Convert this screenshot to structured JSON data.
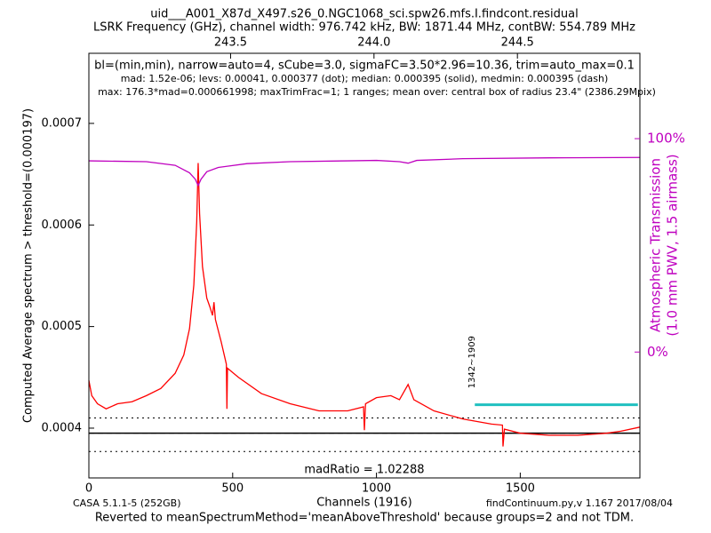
{
  "chart_data": {
    "type": "line",
    "title": "uid___A001_X87d_X497.s26_0.NGC1068_sci.spw26.mfs.I.findcont.residual",
    "subtitle": "LSRK Frequency (GHz), channel width: 976.742 kHz, BW: 1871.44 MHz, contBW: 554.789 MHz",
    "annotations": [
      "bl=(min,min), narrow=auto=4, sCube=3.0, sigmaFC=3.50*2.96=10.36, trim=auto_max=0.1",
      "mad: 1.52e-06; levs: 0.00041, 0.000377 (dot); median: 0.000395 (solid), medmin: 0.000395 (dash)",
      "max: 176.3*mad=0.000661998; maxTrimFrac=1; 1 ranges; mean over: central box of radius 23.4\" (2386.29Mpix)"
    ],
    "ratio_label": "madRatio = 1.02288",
    "footer_left": "CASA 5.1.1-5   (252GB)",
    "footer_right": "findContinuum.py,v 1.167 2017/08/04",
    "footer_note": "Reverted to meanSpectrumMethod='meanAboveThreshold' because groups=2 and not TDM.",
    "xlabel": "Channels (1916)",
    "ylabel": "Computed Average spectrum > threshold=(0.000197)",
    "y2label": [
      "Atmospheric Transmission",
      "(1.0 mm PWV, 1.5 airmass)"
    ],
    "xlim": [
      0,
      1916
    ],
    "xticks": [
      0,
      500,
      1000,
      1500
    ],
    "x2lim": [
      243.006,
      244.927
    ],
    "x2ticks": [
      243.5,
      {
        "value": 244.0,
        "label": "244.0"
      },
      244.5
    ],
    "ylim": [
      0.000351,
      0.000769
    ],
    "yticks": [
      0.0004,
      0.0005,
      0.0006,
      0.0007
    ],
    "y2lim": [
      -59,
      140
    ],
    "y2ticks": [
      {
        "value": 0,
        "label": "0%"
      },
      {
        "value": 100,
        "label": "100%"
      }
    ],
    "y2color": "#bf00bf",
    "series": [
      {
        "color": "#ff0000",
        "x": [
          0,
          10,
          30,
          60,
          100,
          150,
          200,
          250,
          300,
          330,
          350,
          365,
          375,
          380,
          385,
          395,
          410,
          420,
          430,
          435,
          440,
          460,
          478,
          480,
          482,
          520,
          600,
          700,
          800,
          900,
          955,
          958,
          962,
          1000,
          1050,
          1080,
          1110,
          1130,
          1200,
          1300,
          1400,
          1438,
          1440,
          1445,
          1500,
          1600,
          1700,
          1800,
          1850,
          1916
        ],
        "values": [
          0.000447,
          0.000432,
          0.000424,
          0.000419,
          0.000424,
          0.000426,
          0.000432,
          0.000439,
          0.000454,
          0.000472,
          0.000498,
          0.000541,
          0.000603,
          0.000661,
          0.000611,
          0.000559,
          0.000528,
          0.00052,
          0.000511,
          0.000524,
          0.000507,
          0.000485,
          0.000463,
          0.000419,
          0.000459,
          0.00045,
          0.000434,
          0.000424,
          0.000417,
          0.000417,
          0.000421,
          0.000398,
          0.000424,
          0.00043,
          0.000432,
          0.000428,
          0.000443,
          0.000428,
          0.000417,
          0.000409,
          0.000404,
          0.000403,
          0.000382,
          0.000399,
          0.000395,
          0.000393,
          0.000393,
          0.000395,
          0.000397,
          0.000401
        ]
      },
      {
        "color": "#bf00bf",
        "axis": "y2",
        "x": [
          0,
          200,
          300,
          350,
          370,
          380,
          390,
          410,
          450,
          550,
          700,
          900,
          1000,
          1080,
          1110,
          1140,
          1300,
          1600,
          1916
        ],
        "values": [
          89.6,
          89.2,
          87.5,
          84,
          81,
          78,
          81,
          84.5,
          86.5,
          88.3,
          89.2,
          89.6,
          89.8,
          89.2,
          88.5,
          89.8,
          90.6,
          91,
          91.2
        ]
      }
    ],
    "levels": [
      {
        "value": 0.00041,
        "style": "dotted",
        "color": "#000000"
      },
      {
        "value": 0.000377,
        "style": "dotted",
        "color": "#000000"
      },
      {
        "value": 0.000395,
        "style": "solid",
        "color": "#000000"
      },
      {
        "value": 0.000395,
        "style": "dashed",
        "color": "#000000"
      }
    ],
    "ranges": [
      {
        "label": "1342~1909",
        "start": 1342,
        "end": 1909,
        "level": 0.000423,
        "color": "#20c0c0"
      }
    ]
  }
}
